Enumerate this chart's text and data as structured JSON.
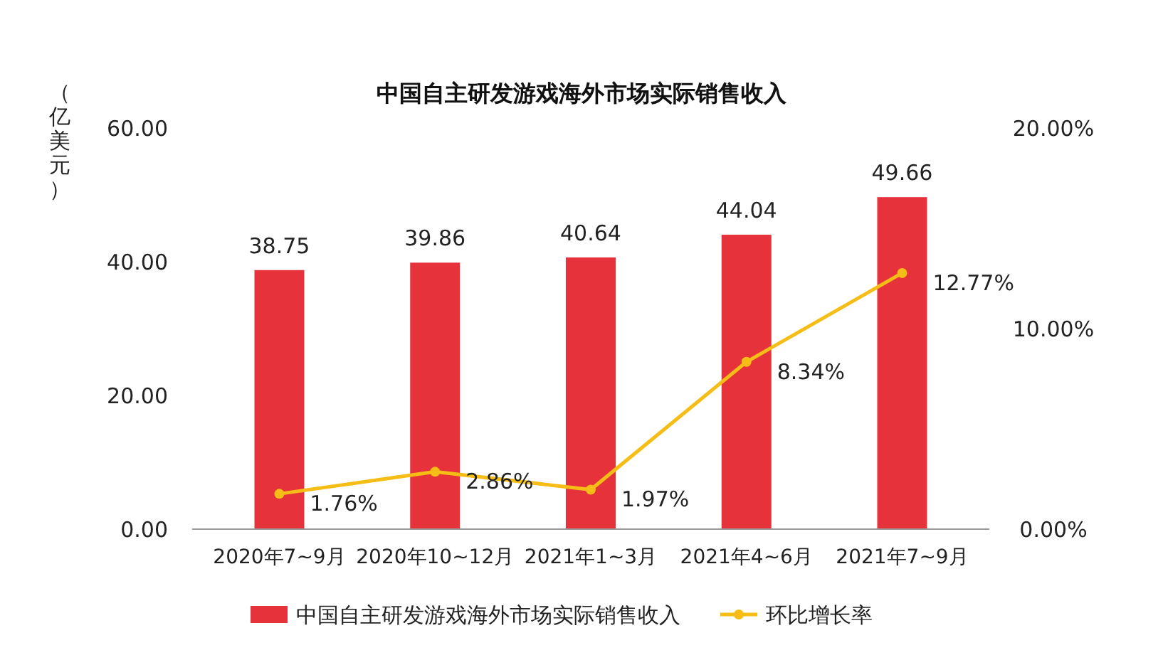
{
  "chart_data": {
    "type": "bar",
    "title": "中国自主研发游戏海外市场实际销售收入",
    "ylabel": "（亿美元）",
    "categories": [
      "2020年7~9月",
      "2020年10~12月",
      "2021年1~3月",
      "2021年4~6月",
      "2021年7~9月"
    ],
    "series": [
      {
        "name": "中国自主研发游戏海外市场实际销售收入",
        "color": "#e5323b",
        "values": [
          38.75,
          39.86,
          40.64,
          44.04,
          49.66
        ],
        "value_labels": [
          "38.75",
          "39.86",
          "40.64",
          "44.04",
          "49.66"
        ]
      },
      {
        "name": "环比增长率",
        "type": "line",
        "axis": "y2",
        "color": "#f6bd16",
        "marker": "circle",
        "values": [
          1.76,
          2.86,
          1.97,
          8.34,
          12.77
        ],
        "value_labels": [
          "1.76%",
          "2.86%",
          "1.97%",
          "8.34%",
          "12.77%"
        ]
      }
    ],
    "ylim": [
      0,
      60
    ],
    "yticks": [
      {
        "value": 0,
        "label": "0.00"
      },
      {
        "value": 20,
        "label": "20.00"
      },
      {
        "value": 40,
        "label": "40.00"
      },
      {
        "value": 60,
        "label": "60.00"
      }
    ],
    "y2lim": [
      0,
      20
    ],
    "y2ticks": [
      {
        "value": 0,
        "label": "0.00%"
      },
      {
        "value": 10,
        "label": "10.00%"
      },
      {
        "value": 20,
        "label": "20.00%"
      }
    ],
    "grid": false,
    "legend": "bottom"
  }
}
